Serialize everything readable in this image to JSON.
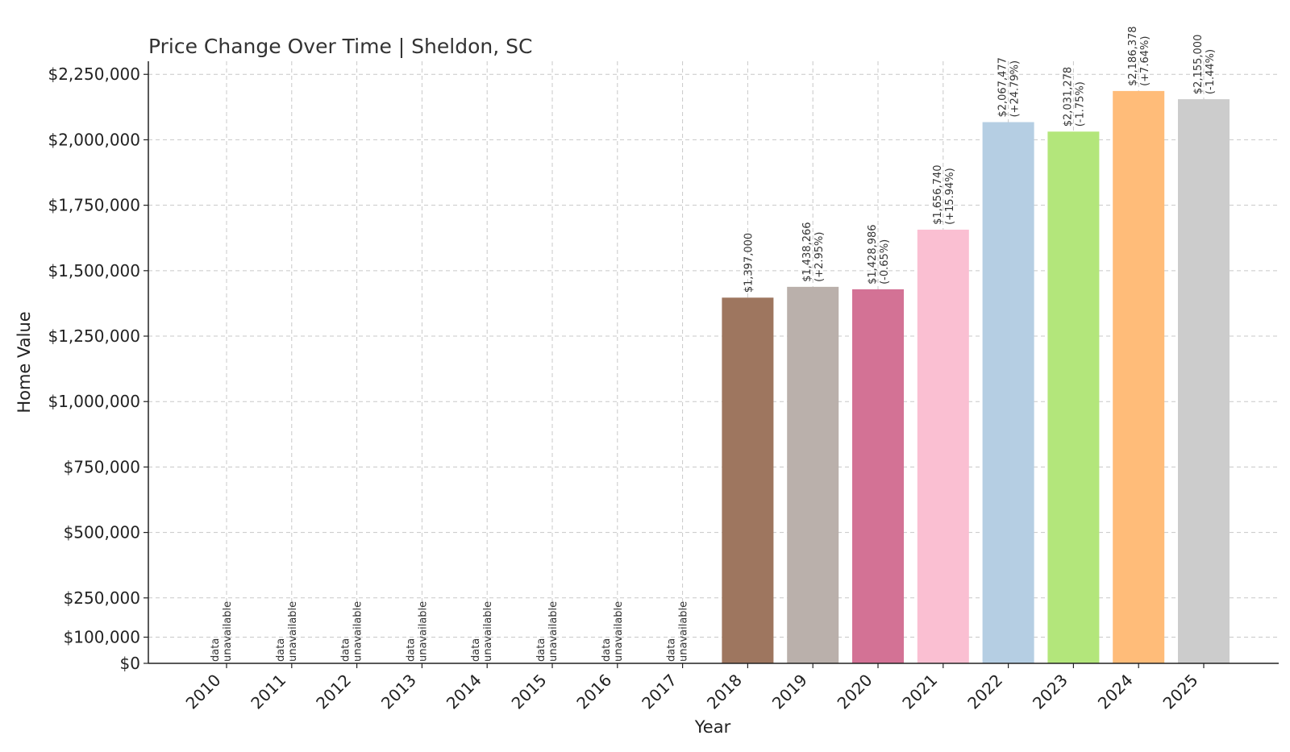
{
  "chart_data": {
    "type": "bar",
    "title": "Price Change Over Time | Sheldon, SC",
    "xlabel": "Year",
    "ylabel": "Home Value",
    "ylim": [
      0,
      2300000
    ],
    "yticks": [
      0,
      100000,
      250000,
      500000,
      750000,
      1000000,
      1250000,
      1500000,
      1750000,
      2000000,
      2250000
    ],
    "ytick_labels": [
      "$0",
      "$100,000",
      "$250,000",
      "$500,000",
      "$750,000",
      "$1,000,000",
      "$1,250,000",
      "$1,500,000",
      "$1,750,000",
      "$2,000,000",
      "$2,250,000"
    ],
    "grid": true,
    "legend": "none",
    "unavailable_label": [
      "data",
      "unavailable"
    ],
    "categories": [
      "2010",
      "2011",
      "2012",
      "2013",
      "2014",
      "2015",
      "2016",
      "2017",
      "2018",
      "2019",
      "2020",
      "2021",
      "2022",
      "2023",
      "2024",
      "2025"
    ],
    "values": [
      null,
      null,
      null,
      null,
      null,
      null,
      null,
      null,
      1397000,
      1438266,
      1428986,
      1656740,
      2067477,
      2031278,
      2186378,
      2155000
    ],
    "value_labels": [
      "",
      "",
      "",
      "",
      "",
      "",
      "",
      "",
      "$1,397,000",
      "$1,438,266",
      "$1,428,986",
      "$1,656,740",
      "$2,067,477",
      "$2,031,278",
      "$2,186,378",
      "$2,155,000"
    ],
    "change_labels": [
      "",
      "",
      "",
      "",
      "",
      "",
      "",
      "",
      "",
      "(+2.95%)",
      "(-0.65%)",
      "(+15.94%)",
      "(+24.79%)",
      "(-1.75%)",
      "(+7.64%)",
      "(-1.44%)"
    ],
    "colors": [
      "#9e9e9e",
      "#9e9e9e",
      "#9e9e9e",
      "#9e9e9e",
      "#9e9e9e",
      "#9e9e9e",
      "#9e9e9e",
      "#9e9e9e",
      "#9e765f",
      "#bab0ab",
      "#d37295",
      "#fabfd2",
      "#b5cee3",
      "#b3e67b",
      "#ffbc79",
      "#cccccc"
    ]
  }
}
